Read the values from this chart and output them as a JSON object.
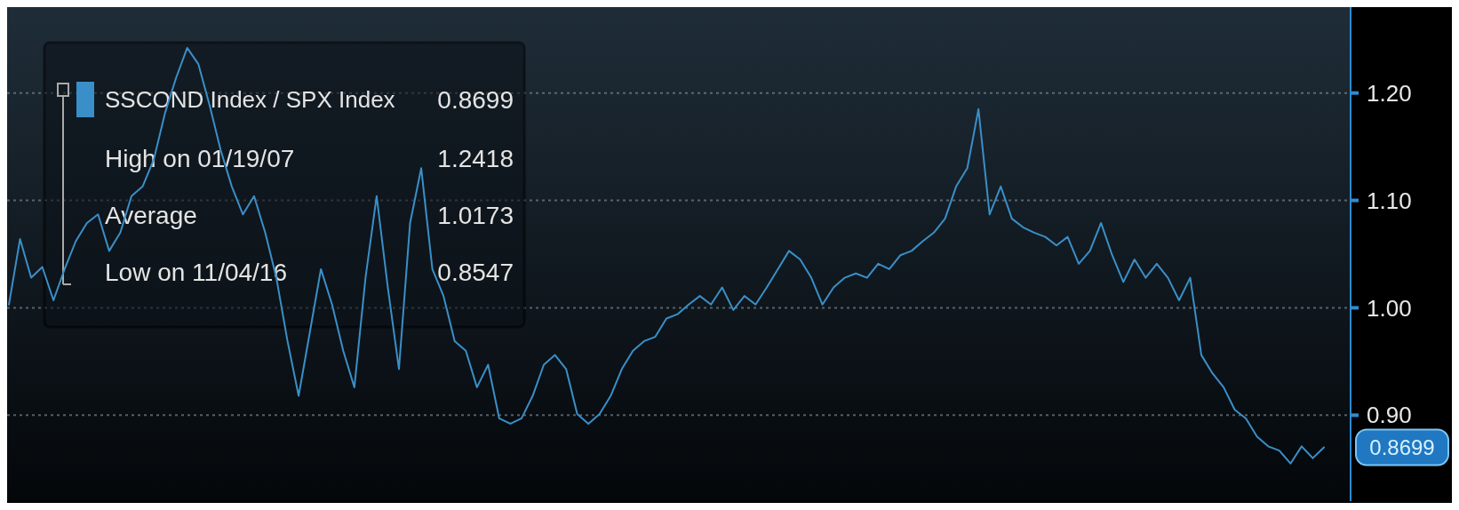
{
  "chart_data": {
    "type": "line",
    "categories": [
      null,
      null,
      null,
      null,
      null,
      null,
      null,
      null,
      null,
      null,
      null,
      null,
      null,
      null,
      null,
      null,
      null,
      null,
      null,
      null,
      null,
      null,
      null,
      null,
      null,
      null,
      null,
      null,
      null,
      null,
      null,
      null,
      null,
      null,
      null,
      null,
      null,
      null,
      null,
      null,
      null,
      null,
      null,
      null,
      null,
      null,
      null,
      null,
      null,
      null,
      null,
      null,
      null,
      null,
      null,
      null,
      null,
      null,
      null,
      null,
      null,
      null,
      null,
      null,
      null,
      null,
      null,
      null,
      null,
      null,
      null,
      null,
      null,
      null,
      null,
      null,
      null,
      null,
      null,
      null,
      null,
      null,
      null,
      null,
      null,
      null,
      null,
      null,
      null,
      null,
      null,
      null,
      null,
      null,
      null,
      null,
      null,
      null,
      null,
      null,
      null,
      null,
      null,
      null,
      null,
      null,
      null,
      null,
      null,
      null,
      null,
      null,
      null,
      null,
      null,
      null,
      null,
      null,
      null
    ],
    "series": [
      {
        "name": "SSCOND Index / SPX Index",
        "color": "#3a8fc8",
        "values": [
          1.003,
          1.064,
          1.028,
          1.038,
          1.007,
          1.036,
          1.062,
          1.079,
          1.087,
          1.053,
          1.07,
          1.104,
          1.113,
          1.138,
          1.181,
          1.214,
          1.242,
          1.227,
          1.189,
          1.147,
          1.113,
          1.087,
          1.104,
          1.07,
          1.028,
          0.969,
          0.918,
          0.977,
          1.036,
          1.003,
          0.96,
          0.926,
          1.028,
          1.104,
          1.019,
          0.943,
          1.079,
          1.13,
          1.036,
          1.011,
          0.969,
          0.96,
          0.926,
          0.947,
          0.897,
          0.892,
          0.897,
          0.918,
          0.947,
          0.956,
          0.943,
          0.901,
          0.892,
          0.901,
          0.918,
          0.943,
          0.96,
          0.969,
          0.973,
          0.99,
          0.994,
          1.003,
          1.011,
          1.003,
          1.019,
          0.998,
          1.011,
          1.003,
          1.019,
          1.036,
          1.053,
          1.045,
          1.028,
          1.003,
          1.019,
          1.028,
          1.032,
          1.028,
          1.041,
          1.036,
          1.049,
          1.053,
          1.062,
          1.07,
          1.083,
          1.113,
          1.13,
          1.185,
          1.087,
          1.113,
          1.083,
          1.075,
          1.07,
          1.066,
          1.058,
          1.066,
          1.041,
          1.053,
          1.079,
          1.049,
          1.024,
          1.045,
          1.028,
          1.041,
          1.028,
          1.007,
          1.028,
          0.956,
          0.939,
          0.926,
          0.905,
          0.897,
          0.88,
          0.871,
          0.867,
          0.855,
          0.871,
          0.86,
          0.87
        ]
      }
    ],
    "ylim": [
      0.82,
      1.28
    ],
    "yticks": [
      {
        "value": 0.9,
        "label": "0.90"
      },
      {
        "value": 1.0,
        "label": "1.00"
      },
      {
        "value": 1.1,
        "label": "1.10"
      },
      {
        "value": 1.2,
        "label": "1.20"
      }
    ],
    "grid": "y",
    "legend": "top left",
    "tick_labels": "y",
    "annotations": [
      "0.8699",
      "High on 01/19/07",
      "1.2418",
      "Average",
      "1.0173",
      "Low on 11/04/16",
      "0.8547",
      "0.8699"
    ]
  }
}
